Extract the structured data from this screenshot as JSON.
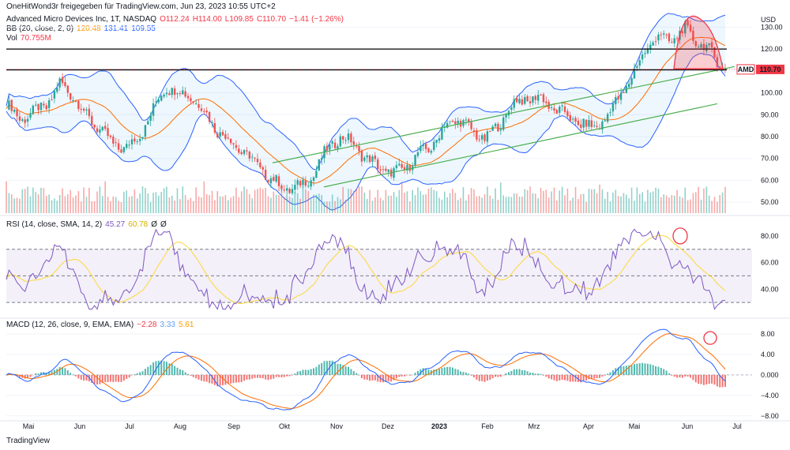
{
  "header": {
    "published": "OneHitWond3r freigegeben für TradingView.com, Jun 23, 2023 10:55 UTC+2",
    "currency": "USD"
  },
  "legend": {
    "symbol": "Advanced Micro Devices Inc, 1T, NASDAQ",
    "o": "O112.24",
    "h": "H114.00",
    "l": "L109.85",
    "c": "C110.70",
    "chg": "−1.41 (−1.26%)",
    "bb_name": "BB (20, close, 2, 0)",
    "bb_basis": "120.48",
    "bb_upper": "131.41",
    "bb_lower": "109.55",
    "vol_name": "Vol",
    "vol_val": "70.755M",
    "rsi_name": "RSI (14, close, SMA, 14, 2)",
    "rsi_val": "45.27",
    "rsi_ma": "60.78",
    "rsi_x1": "Ø",
    "rsi_x2": "Ø",
    "macd_name": "MACD (12, 26, close, 9, EMA, EMA)",
    "macd_hist": "−2.28",
    "macd_line": "3.33",
    "macd_signal": "5.61"
  },
  "price_tag": {
    "ticker": "AMD",
    "value": "110.70"
  },
  "brand": "TradingView",
  "colors": {
    "up": "#26a69a",
    "down": "#ef5350",
    "bb": "#2962ff",
    "basis": "#ff6d00",
    "rsi": "#7e57c2",
    "rsi_ma": "#fdd835",
    "channel": "#4caf50",
    "highlight": "#f23645"
  },
  "chart_data": {
    "type": "candlestick",
    "x_labels": [
      "Mai",
      "Jun",
      "Jul",
      "Aug",
      "Sep",
      "Okt",
      "Nov",
      "Dez",
      "2023",
      "Feb",
      "Mrz",
      "Apr",
      "Mai",
      "Jun",
      "Jul"
    ],
    "price_axis": {
      "ticks": [
        50,
        60,
        70,
        80,
        90,
        100,
        110,
        120,
        130
      ],
      "range": [
        45,
        137
      ],
      "labels": [
        "50.00",
        "60.00",
        "70.00",
        "80.00",
        "90.00",
        "100.00",
        "110.00",
        "120.00",
        "130.00"
      ]
    },
    "rsi_axis": {
      "ticks": [
        40,
        60,
        80
      ],
      "labels": [
        "40.00",
        "60.00",
        "80.00"
      ],
      "band": [
        30,
        70
      ],
      "mid": 50,
      "range": [
        20,
        90
      ]
    },
    "macd_axis": {
      "ticks": [
        8,
        4,
        0,
        -4,
        -8
      ],
      "labels": [
        "8.00",
        "4.00",
        "0.000",
        "−4.00",
        "−8.00"
      ],
      "range": [
        -8.5,
        10
      ]
    },
    "close_path": [
      {
        "x": "May 2022",
        "v": 95
      },
      {
        "x": "",
        "v": 88
      },
      {
        "x": "",
        "v": 91
      },
      {
        "x": "",
        "v": 94
      },
      {
        "x": "Jun",
        "v": 104
      },
      {
        "x": "",
        "v": 99
      },
      {
        "x": "",
        "v": 89
      },
      {
        "x": "",
        "v": 84
      },
      {
        "x": "Jul",
        "v": 76
      },
      {
        "x": "",
        "v": 75
      },
      {
        "x": "",
        "v": 80
      },
      {
        "x": "",
        "v": 92
      },
      {
        "x": "Aug",
        "v": 103
      },
      {
        "x": "",
        "v": 100
      },
      {
        "x": "",
        "v": 98
      },
      {
        "x": "",
        "v": 90
      },
      {
        "x": "Sep",
        "v": 82
      },
      {
        "x": "",
        "v": 77
      },
      {
        "x": "",
        "v": 72
      },
      {
        "x": "",
        "v": 66
      },
      {
        "x": "Okt",
        "v": 60
      },
      {
        "x": "",
        "v": 56
      },
      {
        "x": "",
        "v": 57
      },
      {
        "x": "",
        "v": 62
      },
      {
        "x": "Nov",
        "v": 73
      },
      {
        "x": "",
        "v": 80
      },
      {
        "x": "",
        "v": 77
      },
      {
        "x": "",
        "v": 70
      },
      {
        "x": "Dez",
        "v": 66
      },
      {
        "x": "",
        "v": 63
      },
      {
        "x": "",
        "v": 66
      },
      {
        "x": "",
        "v": 72
      },
      {
        "x": "2023",
        "v": 76
      },
      {
        "x": "",
        "v": 85
      },
      {
        "x": "",
        "v": 88
      },
      {
        "x": "",
        "v": 82
      },
      {
        "x": "Feb",
        "v": 79
      },
      {
        "x": "",
        "v": 85
      },
      {
        "x": "",
        "v": 95
      },
      {
        "x": "",
        "v": 97
      },
      {
        "x": "Mrz",
        "v": 98
      },
      {
        "x": "",
        "v": 93
      },
      {
        "x": "",
        "v": 90
      },
      {
        "x": "",
        "v": 86
      },
      {
        "x": "Apr",
        "v": 84
      },
      {
        "x": "",
        "v": 88
      },
      {
        "x": "",
        "v": 98
      },
      {
        "x": "",
        "v": 107
      },
      {
        "x": "Mai",
        "v": 120
      },
      {
        "x": "",
        "v": 126
      },
      {
        "x": "",
        "v": 124
      },
      {
        "x": "",
        "v": 129
      },
      {
        "x": "Jun",
        "v": 123
      },
      {
        "x": "",
        "v": 118
      },
      {
        "x": "",
        "v": 110.7
      }
    ],
    "horizontal_levels": [
      120,
      110.5
    ],
    "last_price": 110.7
  }
}
